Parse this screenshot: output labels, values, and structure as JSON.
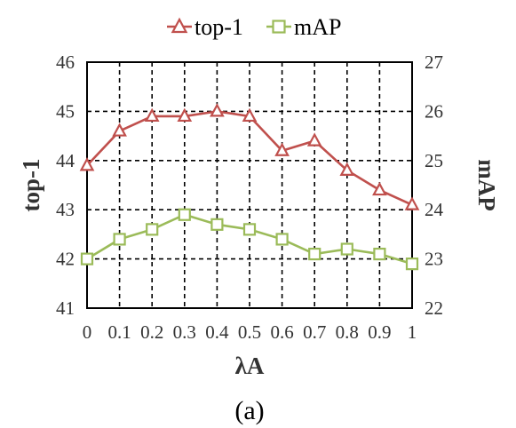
{
  "chart_data": {
    "type": "line",
    "caption": "(a)",
    "x": [
      "0",
      "0.1",
      "0.2",
      "0.3",
      "0.4",
      "0.5",
      "0.6",
      "0.7",
      "0.8",
      "0.9",
      "1"
    ],
    "xlabel": "λA",
    "ylabel_left": "top-1",
    "ylabel_right": "mAP",
    "ylim_left": [
      41,
      46
    ],
    "ylim_right": [
      22,
      27
    ],
    "yticks_left": [
      "41",
      "42",
      "43",
      "44",
      "45",
      "46"
    ],
    "yticks_right": [
      "22",
      "23",
      "24",
      "25",
      "26",
      "27"
    ],
    "grid": true,
    "legend_position": "top",
    "series": [
      {
        "name": "top-1",
        "axis": "left",
        "marker": "triangle",
        "color": "#c0504d",
        "values": [
          43.9,
          44.6,
          44.9,
          44.9,
          45.0,
          44.9,
          44.2,
          44.4,
          43.8,
          43.4,
          43.1
        ]
      },
      {
        "name": "mAP",
        "axis": "right",
        "marker": "square",
        "color": "#9bbb59",
        "values": [
          23.0,
          23.4,
          23.6,
          23.9,
          23.7,
          23.6,
          23.4,
          23.1,
          23.2,
          23.1,
          22.9
        ]
      }
    ]
  }
}
